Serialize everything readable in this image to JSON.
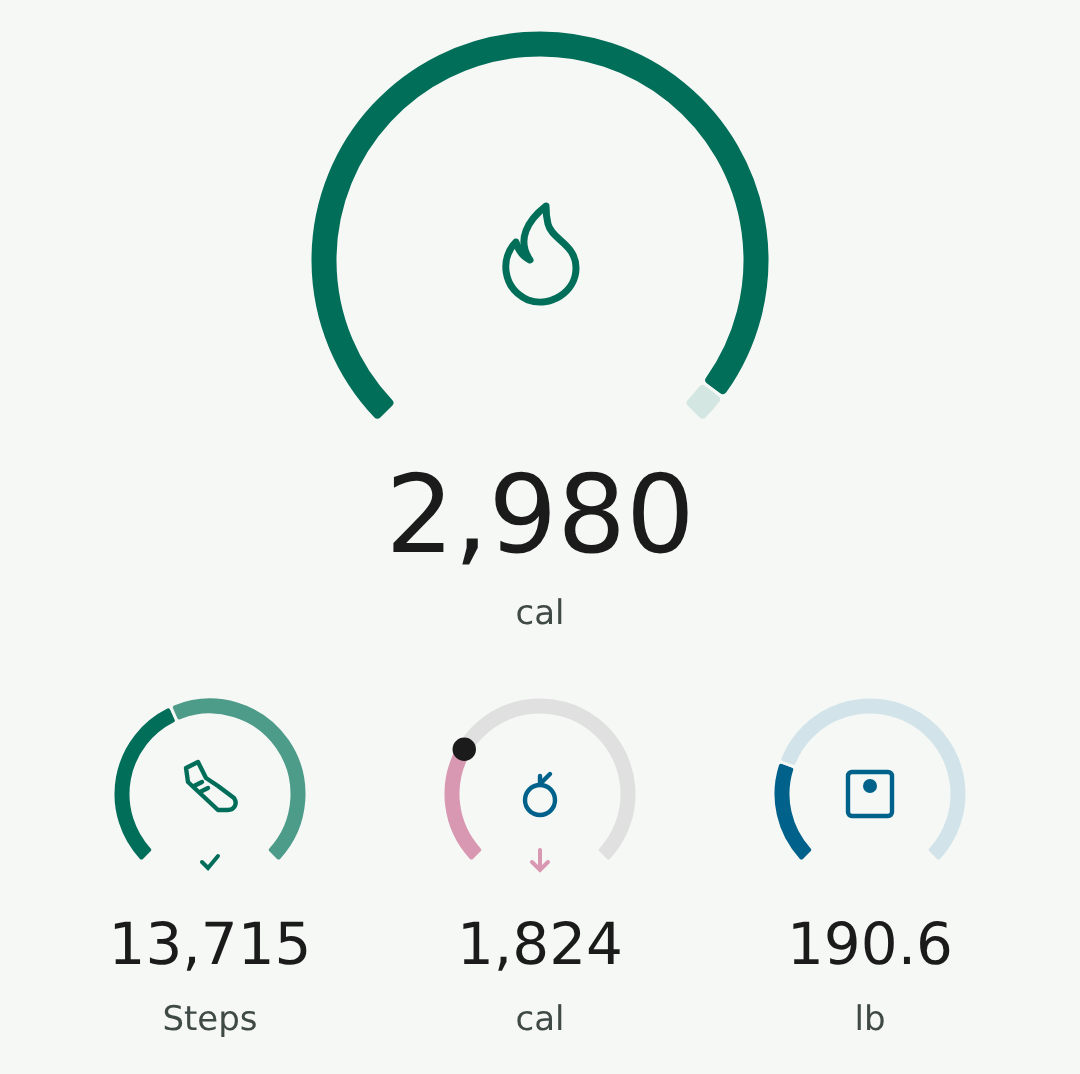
{
  "chart_data": [
    {
      "type": "donut",
      "title": "2,980",
      "subtitle": "cal",
      "categories": [
        null,
        null
      ],
      "values": [
        97,
        3
      ],
      "colors": [
        "#006e58",
        "#d3e6e1"
      ]
    },
    {
      "type": "donut",
      "title": "13,715",
      "subtitle": "Steps",
      "categories": [
        null,
        null
      ],
      "values": [
        41,
        59
      ],
      "colors": [
        "#006e58",
        "#4d9b89"
      ]
    },
    {
      "type": "donut",
      "title": "1,824",
      "subtitle": "cal",
      "categories": [
        null,
        null
      ],
      "values": [
        28,
        72
      ],
      "colors": [
        "#d898b2",
        "#dfe0df"
      ]
    },
    {
      "type": "donut",
      "title": "190.6",
      "subtitle": "lb",
      "categories": [
        null,
        null
      ],
      "values": [
        24,
        76
      ],
      "colors": [
        "#00628a",
        "#d2e4ea"
      ]
    }
  ]
}
